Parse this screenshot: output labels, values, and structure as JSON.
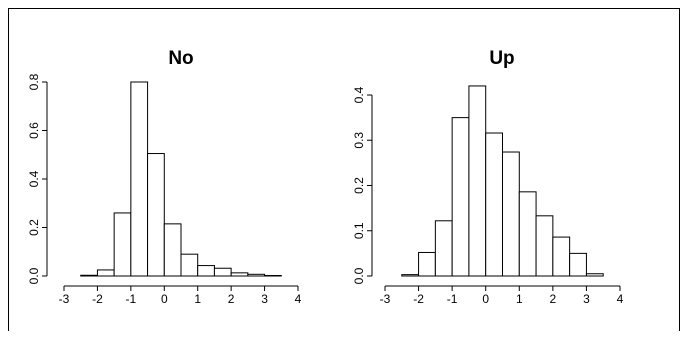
{
  "chart_data": [
    {
      "type": "bar",
      "title": "No",
      "xlabel": "",
      "ylabel": "",
      "xlim": [
        -3,
        4
      ],
      "ylim": [
        0,
        0.8
      ],
      "bin_width": 0.5,
      "bin_edges": [
        -2.5,
        -2.0,
        -1.5,
        -1.0,
        -0.5,
        0.0,
        0.5,
        1.0,
        1.5,
        2.0,
        2.5,
        3.0,
        3.5
      ],
      "values": [
        0.003,
        0.025,
        0.26,
        0.8,
        0.505,
        0.215,
        0.09,
        0.043,
        0.032,
        0.013,
        0.007,
        0.002
      ],
      "x_ticks": [
        "-3",
        "-2",
        "-1",
        "0",
        "1",
        "2",
        "3",
        "4"
      ],
      "y_ticks": [
        "0.0",
        "0.2",
        "0.4",
        "0.6",
        "0.8"
      ],
      "grid": false
    },
    {
      "type": "bar",
      "title": "Up",
      "xlabel": "",
      "ylabel": "",
      "xlim": [
        -3,
        4
      ],
      "ylim": [
        0,
        0.4
      ],
      "bin_width": 0.5,
      "bin_edges": [
        -2.5,
        -2.0,
        -1.5,
        -1.0,
        -0.5,
        0.0,
        0.5,
        1.0,
        1.5,
        2.0,
        2.5,
        3.0,
        3.5
      ],
      "values": [
        0.003,
        0.052,
        0.122,
        0.35,
        0.42,
        0.316,
        0.274,
        0.186,
        0.133,
        0.086,
        0.05,
        0.005
      ],
      "x_ticks": [
        "-3",
        "-2",
        "-1",
        "0",
        "1",
        "2",
        "3",
        "4"
      ],
      "y_ticks": [
        "0.0",
        "0.1",
        "0.2",
        "0.3",
        "0.4"
      ],
      "grid": false
    }
  ]
}
